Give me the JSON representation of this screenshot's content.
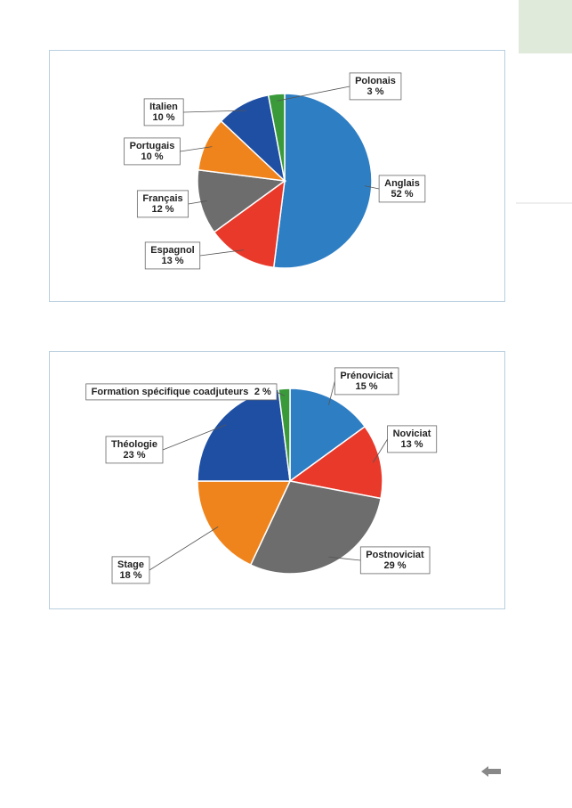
{
  "chart_data": [
    {
      "type": "pie",
      "categories": [
        "Anglais",
        "Espagnol",
        "Français",
        "Portugais",
        "Italien",
        "Polonais"
      ],
      "values": [
        52,
        13,
        12,
        10,
        10,
        3
      ],
      "value_labels": [
        "52 %",
        "13 %",
        "12 %",
        "10 %",
        "10 %",
        "3 %"
      ],
      "colors": [
        "#2e7ec4",
        "#e8392a",
        "#6d6d6d",
        "#f0841c",
        "#1f4fa3",
        "#3a9a3a"
      ]
    },
    {
      "type": "pie",
      "categories": [
        "Prénoviciat",
        "Noviciat",
        "Postnoviciat",
        "Stage",
        "Théologie",
        "Formation spécifique coadjuteurs"
      ],
      "values": [
        15,
        13,
        29,
        18,
        23,
        2
      ],
      "value_labels": [
        "15 %",
        "13 %",
        "29 %",
        "18 %",
        "23 %",
        "2 %"
      ],
      "colors": [
        "#2e7ec4",
        "#e8392a",
        "#6d6d6d",
        "#f0841c",
        "#1f4fa3",
        "#3a9a3a"
      ]
    }
  ]
}
